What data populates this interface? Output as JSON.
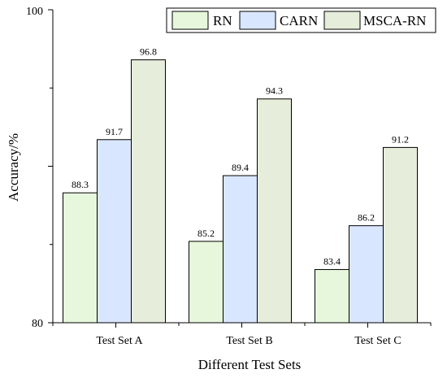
{
  "chart_data": {
    "type": "bar",
    "title": "",
    "xlabel": "Different Test Sets",
    "ylabel": "Accuracy/%",
    "categories": [
      "Test Set A",
      "Test Set B",
      "Test Set C"
    ],
    "ylim": [
      80,
      100
    ],
    "y_tick_labels": [
      "80",
      "100"
    ],
    "legend_position": "top-right",
    "grid": false,
    "series": [
      {
        "name": "RN",
        "values": [
          88.3,
          85.2,
          83.4
        ],
        "color": "#e6f7dc"
      },
      {
        "name": "CARN",
        "values": [
          91.7,
          89.4,
          86.2
        ],
        "color": "#d9e6ff"
      },
      {
        "name": "MSCA-RN",
        "values": [
          96.8,
          94.3,
          91.2
        ],
        "color": "#e6edda"
      }
    ],
    "data_labels": [
      [
        "88.3",
        "85.2",
        "83.4"
      ],
      [
        "91.7",
        "89.4",
        "86.2"
      ],
      [
        "96.8",
        "94.3",
        "91.2"
      ]
    ]
  }
}
